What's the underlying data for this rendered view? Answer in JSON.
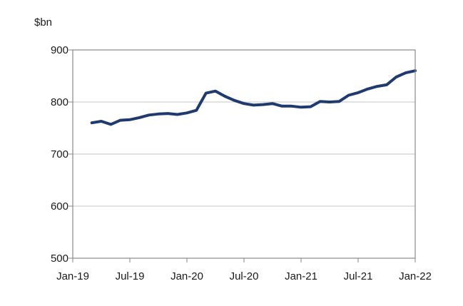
{
  "chart_data": {
    "type": "line",
    "ylabel": "$bn",
    "ylim": [
      500,
      900
    ],
    "yticks": [
      500,
      600,
      700,
      800,
      900
    ],
    "xlim": [
      "2019-01",
      "2022-01"
    ],
    "xticks": [
      {
        "value": "2019-01",
        "label": "Jan-19"
      },
      {
        "value": "2019-07",
        "label": "Jul-19"
      },
      {
        "value": "2020-01",
        "label": "Jan-20"
      },
      {
        "value": "2020-07",
        "label": "Jul-20"
      },
      {
        "value": "2021-01",
        "label": "Jan-21"
      },
      {
        "value": "2021-07",
        "label": "Jul-21"
      },
      {
        "value": "2022-01",
        "label": "Jan-22"
      }
    ],
    "grid": "horizontal",
    "legend": "none",
    "line_color": "#1f3a6e",
    "series": [
      {
        "x": [
          "2019-03",
          "2019-04",
          "2019-05",
          "2019-06",
          "2019-07",
          "2019-08",
          "2019-09",
          "2019-10",
          "2019-11",
          "2019-12",
          "2020-01",
          "2020-02",
          "2020-03",
          "2020-04",
          "2020-05",
          "2020-06",
          "2020-07",
          "2020-08",
          "2020-09",
          "2020-10",
          "2020-11",
          "2020-12",
          "2021-01",
          "2021-02",
          "2021-03",
          "2021-04",
          "2021-05",
          "2021-06",
          "2021-07",
          "2021-08",
          "2021-09",
          "2021-10",
          "2021-11",
          "2021-12",
          "2022-01"
        ],
        "values": [
          760,
          763,
          757,
          765,
          766,
          770,
          775,
          777,
          778,
          776,
          779,
          784,
          817,
          821,
          811,
          803,
          797,
          794,
          795,
          797,
          792,
          792,
          790,
          791,
          801,
          800,
          801,
          813,
          818,
          825,
          830,
          833,
          848,
          856,
          860
        ]
      }
    ]
  }
}
